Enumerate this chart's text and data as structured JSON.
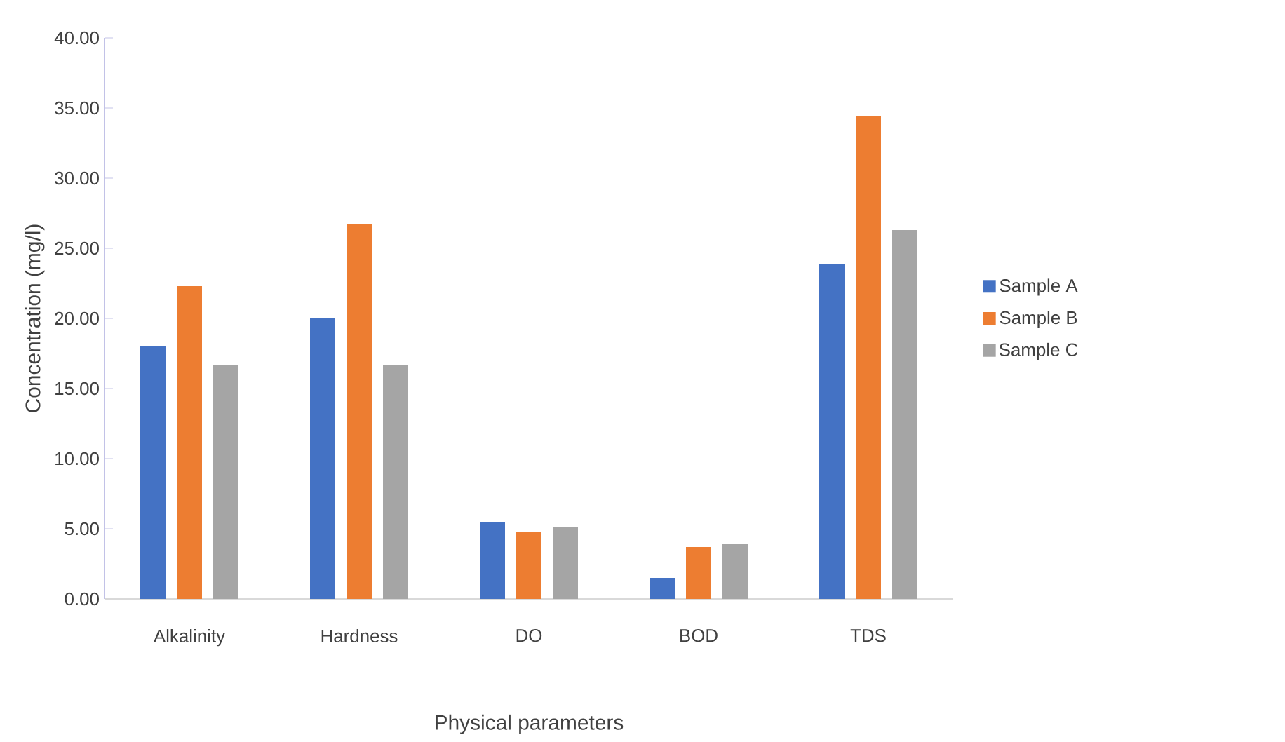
{
  "chart_data": {
    "type": "bar",
    "xlabel": "Physical parameters",
    "ylabel": "Concentration (mg/l)",
    "categories": [
      "Alkalinity",
      "Hardness",
      "DO",
      "BOD",
      "TDS"
    ],
    "series": [
      {
        "name": "Sample A",
        "color": "#4472c4",
        "values": [
          18.0,
          20.0,
          5.5,
          1.5,
          23.9
        ]
      },
      {
        "name": "Sample B",
        "color": "#ed7d31",
        "values": [
          22.3,
          26.7,
          4.8,
          3.7,
          34.4
        ]
      },
      {
        "name": "Sample C",
        "color": "#a5a5a5",
        "values": [
          16.7,
          16.7,
          5.1,
          3.9,
          26.3
        ]
      }
    ],
    "ylim": [
      0,
      40
    ],
    "yticks": [
      {
        "value": 0,
        "label": "0.00"
      },
      {
        "value": 5,
        "label": "5.00"
      },
      {
        "value": 10,
        "label": "10.00"
      },
      {
        "value": 15,
        "label": "15.00"
      },
      {
        "value": 20,
        "label": "20.00"
      },
      {
        "value": 25,
        "label": "25.00"
      },
      {
        "value": 30,
        "label": "30.00"
      },
      {
        "value": 35,
        "label": "35.00"
      },
      {
        "value": 40,
        "label": "40.00"
      }
    ],
    "grid": false,
    "legend": "right"
  }
}
